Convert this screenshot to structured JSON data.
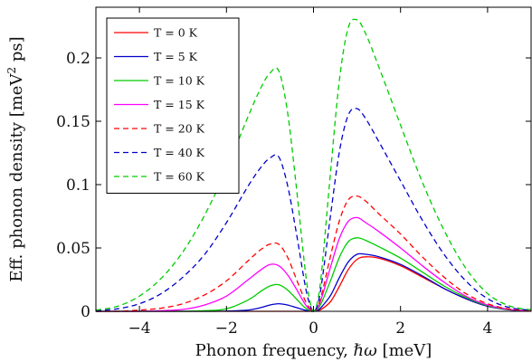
{
  "chart_data": {
    "type": "line",
    "xlabel_prefix": "Phonon frequency, ",
    "xlabel_symbol": "ℏω",
    "xlabel_unit": " [meV]",
    "ylabel_main": "Eff. phonon density [meV",
    "ylabel_sup": "2",
    "ylabel_tail": " ps]",
    "xlim": [
      -5,
      5
    ],
    "ylim": [
      0,
      0.24
    ],
    "xticks": [
      -4,
      -2,
      0,
      2,
      4
    ],
    "xtick_labels": [
      "−4",
      "−2",
      "0",
      "2",
      "4"
    ],
    "yticks": [
      0,
      0.05,
      0.1,
      0.15,
      0.2
    ],
    "ytick_labels": [
      "0",
      "0.05",
      "0.1",
      "0.15",
      "0.2"
    ],
    "grid": false,
    "legend_position": "top-left",
    "x": [
      -5.0,
      -4.5,
      -4.0,
      -3.5,
      -3.0,
      -2.5,
      -2.0,
      -1.5,
      -1.2,
      -1.0,
      -0.8,
      -0.6,
      -0.4,
      -0.2,
      -0.1,
      0.0,
      0.1,
      0.2,
      0.4,
      0.6,
      0.8,
      1.0,
      1.2,
      1.5,
      2.0,
      2.5,
      3.0,
      3.5,
      4.0,
      4.5,
      5.0
    ],
    "series": [
      {
        "name": "T = 0 K",
        "color": "#ff0000",
        "dash": "solid",
        "values": [
          0,
          0,
          0,
          0,
          0,
          0,
          0,
          0,
          0,
          0,
          0,
          0,
          0,
          0,
          0,
          0,
          0.0005,
          0.002,
          0.008,
          0.02,
          0.033,
          0.041,
          0.043,
          0.042,
          0.036,
          0.027,
          0.018,
          0.01,
          0.004,
          0.0012,
          0.0003
        ]
      },
      {
        "name": "T = 5 K",
        "color": "#0000cc",
        "dash": "solid",
        "values": [
          0,
          0,
          0,
          0,
          0,
          0,
          0.0002,
          0.001,
          0.003,
          0.005,
          0.006,
          0.005,
          0.003,
          0.001,
          0.0003,
          0,
          0.0008,
          0.004,
          0.013,
          0.027,
          0.039,
          0.045,
          0.045,
          0.043,
          0.037,
          0.028,
          0.018,
          0.01,
          0.004,
          0.0012,
          0.0003
        ]
      },
      {
        "name": "T = 10 K",
        "color": "#00cc00",
        "dash": "solid",
        "values": [
          0,
          0,
          0,
          0,
          0,
          0.0005,
          0.002,
          0.009,
          0.016,
          0.02,
          0.021,
          0.017,
          0.01,
          0.003,
          0.001,
          0,
          0.002,
          0.008,
          0.025,
          0.043,
          0.055,
          0.058,
          0.056,
          0.051,
          0.042,
          0.031,
          0.02,
          0.011,
          0.0045,
          0.0014,
          0.0004
        ]
      },
      {
        "name": "T = 15 K",
        "color": "#ff00ff",
        "dash": "solid",
        "values": [
          0,
          0,
          0,
          0.0005,
          0.0015,
          0.005,
          0.012,
          0.025,
          0.033,
          0.037,
          0.036,
          0.029,
          0.018,
          0.006,
          0.002,
          0,
          0.003,
          0.012,
          0.036,
          0.058,
          0.071,
          0.074,
          0.07,
          0.063,
          0.05,
          0.036,
          0.023,
          0.012,
          0.005,
          0.0016,
          0.0004
        ]
      },
      {
        "name": "T = 20 K",
        "color": "#ff0000",
        "dash": "dashed",
        "values": [
          0,
          0,
          0.001,
          0.0025,
          0.006,
          0.013,
          0.024,
          0.04,
          0.049,
          0.053,
          0.053,
          0.043,
          0.026,
          0.009,
          0.003,
          0,
          0.004,
          0.015,
          0.045,
          0.072,
          0.088,
          0.091,
          0.087,
          0.077,
          0.061,
          0.043,
          0.027,
          0.014,
          0.006,
          0.0018,
          0.0005
        ]
      },
      {
        "name": "T = 40 K",
        "color": "#0000cc",
        "dash": "dashed",
        "values": [
          0.0005,
          0.002,
          0.006,
          0.014,
          0.027,
          0.045,
          0.07,
          0.099,
          0.114,
          0.121,
          0.122,
          0.1,
          0.063,
          0.022,
          0.007,
          0,
          0.006,
          0.025,
          0.078,
          0.127,
          0.155,
          0.16,
          0.152,
          0.134,
          0.103,
          0.072,
          0.045,
          0.024,
          0.01,
          0.003,
          0.0008
        ]
      },
      {
        "name": "T = 60 K",
        "color": "#00cc00",
        "dash": "dashed",
        "values": [
          0.001,
          0.004,
          0.012,
          0.026,
          0.047,
          0.076,
          0.112,
          0.154,
          0.177,
          0.188,
          0.19,
          0.158,
          0.1,
          0.035,
          0.011,
          0,
          0.009,
          0.036,
          0.113,
          0.184,
          0.224,
          0.23,
          0.219,
          0.193,
          0.147,
          0.102,
          0.064,
          0.034,
          0.014,
          0.0043,
          0.0011
        ]
      }
    ]
  }
}
